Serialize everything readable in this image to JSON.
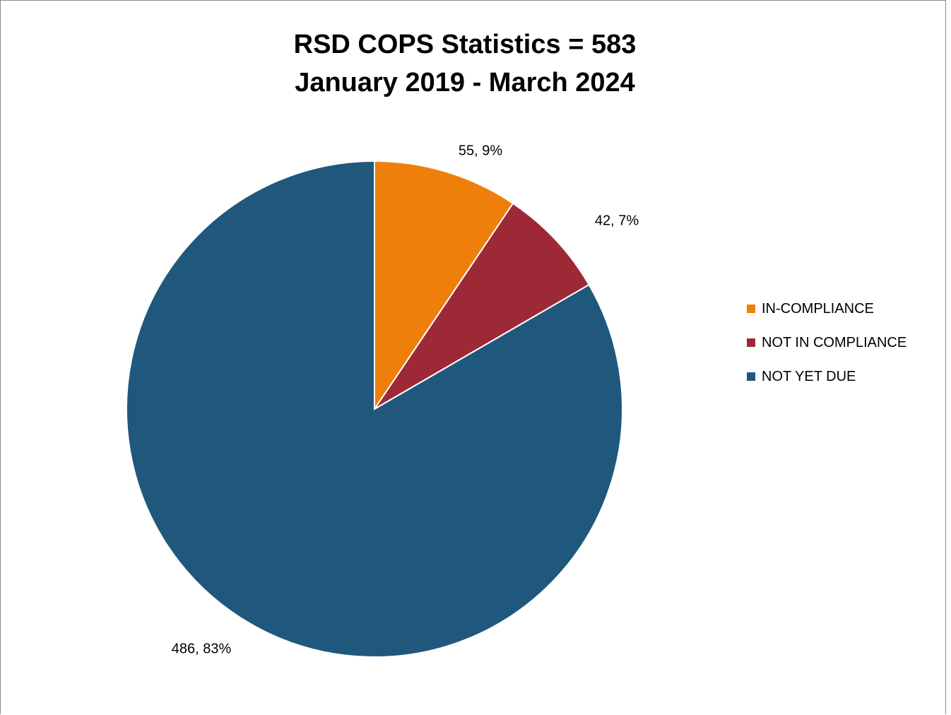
{
  "chart_data": {
    "type": "pie",
    "title": "RSD COPS Statistics  = 583",
    "subtitle": "January 2019 - March 2024",
    "slices": [
      {
        "label": "IN-COMPLIANCE",
        "value": 55,
        "percent": "9%",
        "color": "#ee7f0a"
      },
      {
        "label": "NOT IN COMPLIANCE",
        "value": 42,
        "percent": "7%",
        "color": "#9e2936"
      },
      {
        "label": "NOT YET DUE",
        "value": 486,
        "percent": "83%",
        "color": "#1f587c"
      }
    ],
    "data_labels": [
      "55, 9%",
      "42, 7%",
      "486, 83%"
    ],
    "legend_position": "right"
  }
}
